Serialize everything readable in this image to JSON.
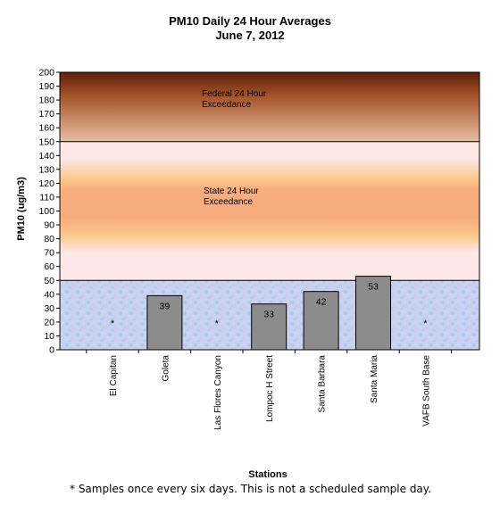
{
  "chart_data": {
    "type": "bar",
    "title": "PM10 Daily 24 Hour Averages",
    "subtitle": "June 7, 2012",
    "xlabel": "Stations",
    "ylabel": "PM10 (ug/m3)",
    "ylim": [
      0,
      200
    ],
    "y_tick_step": 10,
    "grid": false,
    "categories": [
      "El Capitan",
      "Goleta",
      "Las Flores Canyon",
      "Lompoc H Street",
      "Santa Barbara",
      "Santa Maria",
      "VAFB South Base"
    ],
    "values": [
      null,
      39,
      null,
      33,
      42,
      53,
      null
    ],
    "missing_marker": "*",
    "bar_color": "#8c8c8c",
    "bands": [
      {
        "name": "federal",
        "from": 150,
        "to": 200,
        "label_lines": [
          "Federal 24 Hour",
          "Exceedance"
        ],
        "top_color": "#5e1f0b",
        "bottom_color": "#e8c0a4"
      },
      {
        "name": "state",
        "from": 50,
        "to": 150,
        "label_lines": [
          "State 24 Hour",
          "Exceedance"
        ],
        "edge_color": "#fde7e7",
        "mid_color": "#fbc98c",
        "core_color": "#f8ad7e"
      },
      {
        "name": "good",
        "from": 0,
        "to": 50,
        "color": "#c5d3f0"
      }
    ],
    "threshold_lines": [
      50,
      150
    ]
  },
  "footnote": "* Samples once every six days.  This is not a scheduled sample day."
}
